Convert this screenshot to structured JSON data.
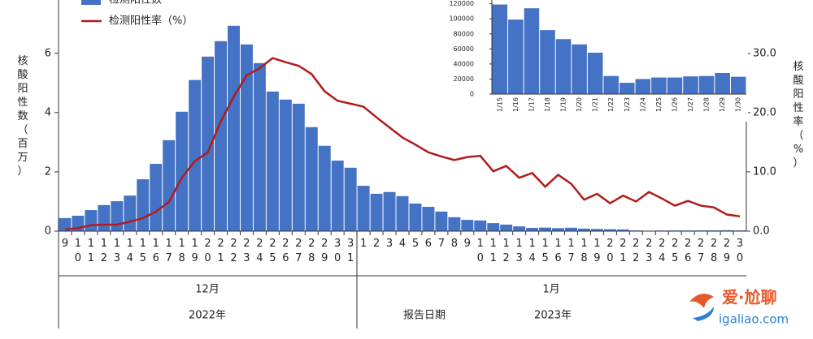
{
  "chart_data": [
    {
      "type": "combo",
      "legend": "upper left",
      "ylabel": "核酸阳性数（百万）",
      "y2label": "核酸阳性率（%）",
      "xlabel": "报告日期",
      "month_labels": [
        "12月",
        "1月"
      ],
      "year_labels": [
        "2022年",
        "2023年"
      ],
      "categories": [
        "9",
        "10",
        "11",
        "12",
        "13",
        "14",
        "15",
        "16",
        "17",
        "18",
        "19",
        "20",
        "21",
        "22",
        "23",
        "24",
        "25",
        "26",
        "27",
        "28",
        "29",
        "30",
        "31",
        "1",
        "2",
        "3",
        "4",
        "5",
        "6",
        "7",
        "8",
        "9",
        "10",
        "11",
        "12",
        "13",
        "14",
        "15",
        "16",
        "17",
        "18",
        "19",
        "20",
        "21",
        "22",
        "23",
        "24",
        "25",
        "26",
        "27",
        "28",
        "29",
        "30"
      ],
      "ylim": [
        0,
        7.8
      ],
      "yticks": [
        0,
        2,
        4,
        6
      ],
      "y2lim": [
        0,
        39
      ],
      "y2ticks": [
        {
          "value": 0,
          "label": "0.0"
        },
        {
          "value": 10,
          "label": "10.0"
        },
        {
          "value": 20,
          "label": "20.0"
        },
        {
          "value": 30,
          "label": "30.0"
        }
      ],
      "series": [
        {
          "name": "检测阳性数",
          "type": "bar",
          "color": "#4472c4",
          "axis": "y",
          "values": [
            0.44,
            0.52,
            0.71,
            0.88,
            1.01,
            1.2,
            1.75,
            2.27,
            3.07,
            4.03,
            5.1,
            5.89,
            6.41,
            6.93,
            6.3,
            5.67,
            4.71,
            4.44,
            4.3,
            3.51,
            2.88,
            2.38,
            2.14,
            1.53,
            1.26,
            1.32,
            1.18,
            0.93,
            0.82,
            0.66,
            0.47,
            0.38,
            0.36,
            0.27,
            0.22,
            0.16,
            0.11,
            0.12,
            0.1,
            0.115,
            0.085,
            0.073,
            0.066,
            0.056,
            0.025,
            0.015,
            0.021,
            0.023,
            0.023,
            0.024,
            0.025,
            0.029,
            0.024
          ]
        },
        {
          "name": "检测阳性率（%）",
          "type": "line",
          "color": "#b01c1c",
          "axis": "y2",
          "values": [
            0.3,
            0.5,
            1.0,
            1.1,
            1.1,
            1.6,
            2.2,
            3.3,
            4.9,
            9.0,
            11.8,
            13.3,
            18.5,
            22.7,
            26.3,
            27.5,
            29.2,
            28.5,
            27.9,
            26.5,
            23.6,
            22.0,
            21.5,
            21.0,
            19.2,
            17.5,
            15.8,
            14.6,
            13.3,
            12.6,
            12.0,
            12.5,
            12.7,
            10.1,
            11.0,
            9.0,
            9.8,
            7.5,
            9.5,
            8.0,
            5.3,
            6.3,
            4.7,
            6.0,
            5.0,
            6.6,
            5.5,
            4.3,
            5.1,
            4.3,
            4.0,
            2.8,
            2.5
          ]
        }
      ]
    },
    {
      "type": "bar",
      "categories": [
        "1/15",
        "1/16",
        "1/17",
        "1/18",
        "1/19",
        "1/20",
        "1/21",
        "1/22",
        "1/23",
        "1/24",
        "1/25",
        "1/26",
        "1/27",
        "1/28",
        "1/29",
        "1/30"
      ],
      "values": [
        119000,
        99000,
        114000,
        85000,
        73000,
        66000,
        55000,
        24000,
        15000,
        20000,
        22000,
        22000,
        23500,
        24000,
        28000,
        23000
      ],
      "color": "#4472c4",
      "ylim": [
        0,
        125000
      ],
      "yticks": [
        0,
        20000,
        40000,
        60000,
        80000,
        100000,
        120000
      ]
    }
  ],
  "watermark": {
    "text": "爱·尬聊",
    "url": "igaliao.com"
  }
}
